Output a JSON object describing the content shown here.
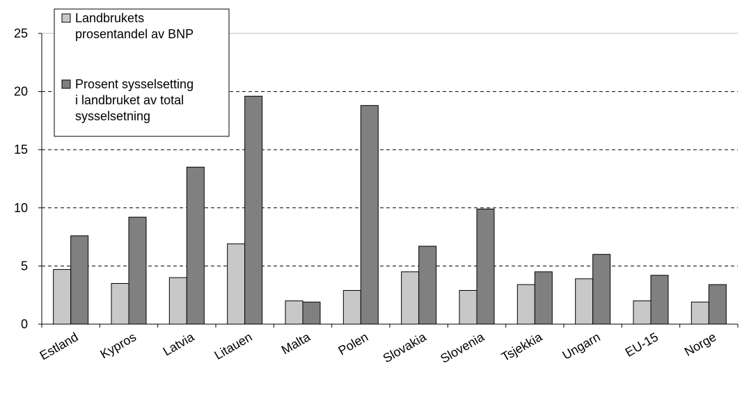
{
  "chart_data": {
    "type": "bar",
    "categories": [
      "Estland",
      "Kypros",
      "Latvia",
      "Litauen",
      "Malta",
      "Polen",
      "Slovakia",
      "Slovenia",
      "Tsjekkia",
      "Ungarn",
      "EU-15",
      "Norge"
    ],
    "series": [
      {
        "name": "Landbrukets prosentandel av BNP",
        "color": "#c8c8c8",
        "values": [
          4.7,
          3.5,
          4.0,
          6.9,
          2.0,
          2.9,
          4.5,
          2.9,
          3.4,
          3.9,
          2.0,
          1.9
        ]
      },
      {
        "name": "Prosent sysselsetting i landbruket av total sysselsetning",
        "color": "#808080",
        "values": [
          7.6,
          9.2,
          13.5,
          19.6,
          1.9,
          18.8,
          6.7,
          9.9,
          4.5,
          6.0,
          4.2,
          3.4
        ]
      }
    ],
    "ylim": [
      0,
      25
    ],
    "yticks": [
      "0",
      "5",
      "10",
      "15",
      "20",
      "25"
    ],
    "grid": "horizontal-dashed",
    "legend_placement": "top-left",
    "legend_lines": [
      [
        "Landbrukets",
        "prosentandel av BNP"
      ],
      [
        "Prosent sysselsetting",
        "i landbruket av total",
        "sysselsetning"
      ]
    ],
    "title": "",
    "xlabel": "",
    "ylabel": ""
  }
}
